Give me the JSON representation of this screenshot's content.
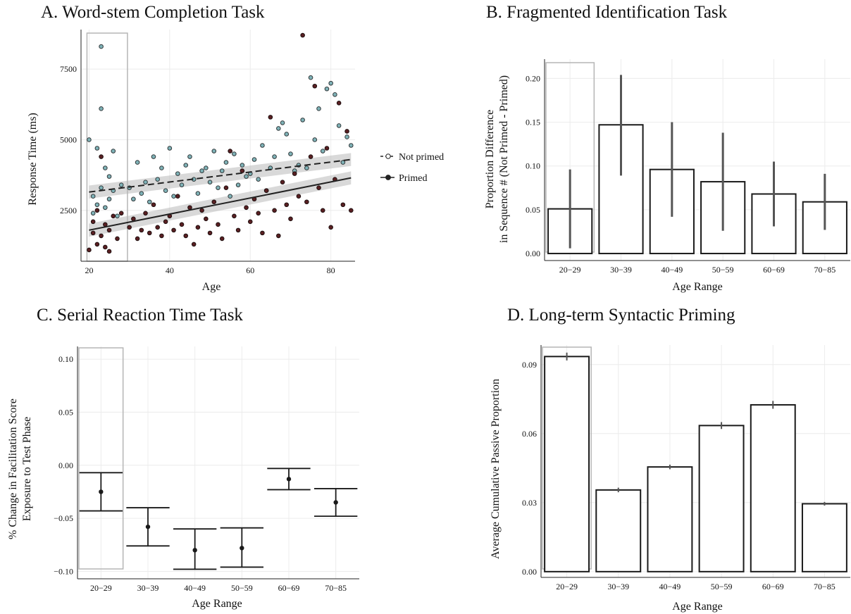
{
  "chart_data": [
    {
      "id": "A",
      "type": "scatter",
      "title": "A. Word-stem Completion Task",
      "xlabel": "Age",
      "ylabel": "Response Time (ms)",
      "xlim": [
        18,
        86
      ],
      "ylim": [
        700,
        8900
      ],
      "xticks": [
        20,
        40,
        60,
        80
      ],
      "yticks": [
        2500,
        5000,
        7500
      ],
      "legend": [
        {
          "name": "Not primed",
          "style": "open-dashed"
        },
        {
          "name": "Primed",
          "style": "filled-solid"
        }
      ],
      "highlight_x": [
        20,
        29
      ],
      "trend_lines": [
        {
          "name": "Not primed",
          "x": [
            20,
            85
          ],
          "y": [
            3150,
            4300
          ],
          "band": 230
        },
        {
          "name": "Primed",
          "x": [
            20,
            85
          ],
          "y": [
            1800,
            3650
          ],
          "band": 230
        }
      ],
      "series": [
        {
          "name": "Not primed",
          "points": [
            [
              20,
              5000
            ],
            [
              21,
              2400
            ],
            [
              21,
              3000
            ],
            [
              22,
              4700
            ],
            [
              22,
              2700
            ],
            [
              23,
              8300
            ],
            [
              23,
              6100
            ],
            [
              23,
              3300
            ],
            [
              24,
              4000
            ],
            [
              24,
              2600
            ],
            [
              25,
              3700
            ],
            [
              25,
              2900
            ],
            [
              26,
              4600
            ],
            [
              26,
              3200
            ],
            [
              27,
              2300
            ],
            [
              28,
              3400
            ],
            [
              30,
              3300
            ],
            [
              31,
              2900
            ],
            [
              32,
              4200
            ],
            [
              33,
              3100
            ],
            [
              34,
              3500
            ],
            [
              35,
              2800
            ],
            [
              36,
              4400
            ],
            [
              37,
              3600
            ],
            [
              38,
              4000
            ],
            [
              39,
              3200
            ],
            [
              40,
              4700
            ],
            [
              41,
              3000
            ],
            [
              42,
              3800
            ],
            [
              43,
              3400
            ],
            [
              44,
              4100
            ],
            [
              45,
              4400
            ],
            [
              46,
              3600
            ],
            [
              47,
              3100
            ],
            [
              48,
              3900
            ],
            [
              49,
              4000
            ],
            [
              50,
              3500
            ],
            [
              51,
              4600
            ],
            [
              52,
              3300
            ],
            [
              53,
              3900
            ],
            [
              54,
              4200
            ],
            [
              55,
              3000
            ],
            [
              56,
              4500
            ],
            [
              57,
              3400
            ],
            [
              58,
              4100
            ],
            [
              59,
              3700
            ],
            [
              60,
              3800
            ],
            [
              61,
              4300
            ],
            [
              62,
              3600
            ],
            [
              63,
              4800
            ],
            [
              64,
              3200
            ],
            [
              65,
              4000
            ],
            [
              66,
              4400
            ],
            [
              67,
              5400
            ],
            [
              68,
              5600
            ],
            [
              69,
              5200
            ],
            [
              70,
              4500
            ],
            [
              71,
              3900
            ],
            [
              72,
              4100
            ],
            [
              73,
              5700
            ],
            [
              74,
              4000
            ],
            [
              75,
              7200
            ],
            [
              76,
              5000
            ],
            [
              77,
              6100
            ],
            [
              78,
              4600
            ],
            [
              79,
              6800
            ],
            [
              80,
              7000
            ],
            [
              81,
              6600
            ],
            [
              82,
              5500
            ],
            [
              83,
              4200
            ],
            [
              84,
              5100
            ],
            [
              85,
              4800
            ]
          ]
        },
        {
          "name": "Primed",
          "points": [
            [
              20,
              1100
            ],
            [
              21,
              1700
            ],
            [
              21,
              2100
            ],
            [
              22,
              2500
            ],
            [
              22,
              1300
            ],
            [
              23,
              4400
            ],
            [
              23,
              1600
            ],
            [
              24,
              2000
            ],
            [
              24,
              1200
            ],
            [
              25,
              1800
            ],
            [
              25,
              1050
            ],
            [
              26,
              2300
            ],
            [
              27,
              1500
            ],
            [
              28,
              2400
            ],
            [
              30,
              1900
            ],
            [
              31,
              2200
            ],
            [
              32,
              1500
            ],
            [
              33,
              1800
            ],
            [
              34,
              2400
            ],
            [
              35,
              1700
            ],
            [
              36,
              2700
            ],
            [
              37,
              1900
            ],
            [
              38,
              1600
            ],
            [
              39,
              2100
            ],
            [
              40,
              2300
            ],
            [
              41,
              1800
            ],
            [
              42,
              3000
            ],
            [
              43,
              2000
            ],
            [
              44,
              1600
            ],
            [
              45,
              2600
            ],
            [
              46,
              1300
            ],
            [
              47,
              1900
            ],
            [
              48,
              2500
            ],
            [
              49,
              2200
            ],
            [
              50,
              1700
            ],
            [
              51,
              2800
            ],
            [
              52,
              2000
            ],
            [
              53,
              1500
            ],
            [
              54,
              3300
            ],
            [
              55,
              4600
            ],
            [
              56,
              2300
            ],
            [
              57,
              1800
            ],
            [
              58,
              3900
            ],
            [
              59,
              2600
            ],
            [
              60,
              2100
            ],
            [
              61,
              2900
            ],
            [
              62,
              2400
            ],
            [
              63,
              1700
            ],
            [
              64,
              3200
            ],
            [
              65,
              5800
            ],
            [
              66,
              2500
            ],
            [
              67,
              1600
            ],
            [
              68,
              3500
            ],
            [
              69,
              2700
            ],
            [
              70,
              2200
            ],
            [
              71,
              3800
            ],
            [
              72,
              3000
            ],
            [
              73,
              8700
            ],
            [
              74,
              2800
            ],
            [
              75,
              4400
            ],
            [
              76,
              6900
            ],
            [
              77,
              3300
            ],
            [
              78,
              2500
            ],
            [
              79,
              4700
            ],
            [
              80,
              1900
            ],
            [
              81,
              3600
            ],
            [
              82,
              6300
            ],
            [
              83,
              2700
            ],
            [
              84,
              5300
            ],
            [
              85,
              2500
            ]
          ]
        }
      ]
    },
    {
      "id": "B",
      "type": "bar",
      "title": "B. Fragmented Identification Task",
      "xlabel": "Age Range",
      "ylabel_line1": "Proportion Difference",
      "ylabel_line2": "in Sequence # (Not Primed - Primed)",
      "categories": [
        "20−29",
        "30−39",
        "40−49",
        "50−59",
        "60−69",
        "70−85"
      ],
      "values": [
        0.051,
        0.147,
        0.096,
        0.082,
        0.068,
        0.059
      ],
      "err_low": [
        0.006,
        0.089,
        0.042,
        0.026,
        0.031,
        0.027
      ],
      "err_high": [
        0.096,
        0.204,
        0.15,
        0.138,
        0.105,
        0.091
      ],
      "ylim": [
        -0.008,
        0.222
      ],
      "yticks": [
        0.0,
        0.05,
        0.1,
        0.15,
        0.2
      ],
      "ytick_labels": [
        "0.00",
        "0.05",
        "0.10",
        "0.15",
        "0.20"
      ],
      "highlight_index": 0
    },
    {
      "id": "C",
      "type": "errorbar",
      "title": "C. Serial Reaction Time Task",
      "xlabel": "Age Range",
      "ylabel_line1": "% Change in Facilitation Score",
      "ylabel_line2": "Exposure to Test Phase",
      "categories": [
        "20−29",
        "30−39",
        "40−49",
        "50−59",
        "60−69",
        "70−85"
      ],
      "values": [
        -0.025,
        -0.058,
        -0.08,
        -0.078,
        -0.013,
        -0.035
      ],
      "err_low": [
        -0.043,
        -0.076,
        -0.098,
        -0.096,
        -0.023,
        -0.048
      ],
      "err_high": [
        -0.007,
        -0.04,
        -0.06,
        -0.059,
        -0.003,
        -0.022
      ],
      "ylim": [
        -0.107,
        0.112
      ],
      "yticks": [
        -0.1,
        -0.05,
        0.0,
        0.05,
        0.1
      ],
      "ytick_labels": [
        "−0.10",
        "−0.05",
        "0.00",
        "0.05",
        "0.10"
      ],
      "highlight_index": 0
    },
    {
      "id": "D",
      "type": "bar",
      "title": "D. Long-term Syntactic Priming",
      "xlabel": "Age Range",
      "ylabel": "Average Cumulative Passive Proportion",
      "categories": [
        "20−29",
        "30−39",
        "40−49",
        "50−59",
        "60−69",
        "70−85"
      ],
      "values": [
        0.0935,
        0.0355,
        0.0455,
        0.0635,
        0.0725,
        0.0295
      ],
      "err_low": [
        0.0918,
        0.0345,
        0.0445,
        0.062,
        0.0708,
        0.0287
      ],
      "err_high": [
        0.0952,
        0.0365,
        0.0465,
        0.065,
        0.0742,
        0.0303
      ],
      "ylim": [
        -0.0025,
        0.0985
      ],
      "yticks": [
        0.0,
        0.03,
        0.06,
        0.09
      ],
      "ytick_labels": [
        "0.00",
        "0.03",
        "0.06",
        "0.09"
      ],
      "highlight_index": 0
    }
  ]
}
